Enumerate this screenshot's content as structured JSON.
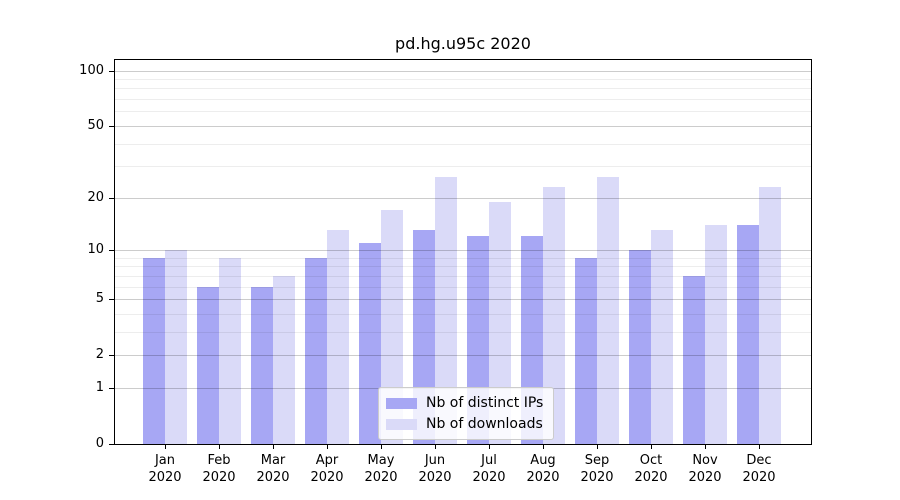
{
  "figure": {
    "title": "pd.hg.u95c 2020",
    "background_color": "#ffffff",
    "axes_color": "#000000"
  },
  "chart_data": {
    "type": "bar",
    "title": "pd.hg.u95c 2020",
    "xlabel": "",
    "ylabel": "",
    "categories": [
      "Jan",
      "Feb",
      "Mar",
      "Apr",
      "May",
      "Jun",
      "Jul",
      "Aug",
      "Sep",
      "Oct",
      "Nov",
      "Dec"
    ],
    "category_year": "2020",
    "series": [
      {
        "name": "Nb of distinct IPs",
        "color": "#a7a7f4",
        "values": [
          9,
          6,
          6,
          9,
          11,
          13,
          12,
          12,
          9,
          10,
          7,
          14
        ]
      },
      {
        "name": "Nb of downloads",
        "color": "#dadaf8",
        "values": [
          10,
          9,
          7,
          13,
          17,
          26,
          19,
          23,
          26,
          13,
          14,
          23
        ]
      }
    ],
    "yscale": "log1p",
    "yticks": [
      0,
      1,
      2,
      5,
      10,
      20,
      50,
      100
    ],
    "yticks_minor": [
      3,
      4,
      6,
      7,
      8,
      9,
      30,
      40,
      60,
      70,
      80,
      90
    ],
    "ylim": [
      0,
      114
    ],
    "grid": true,
    "legend_position": "lower center inside"
  }
}
